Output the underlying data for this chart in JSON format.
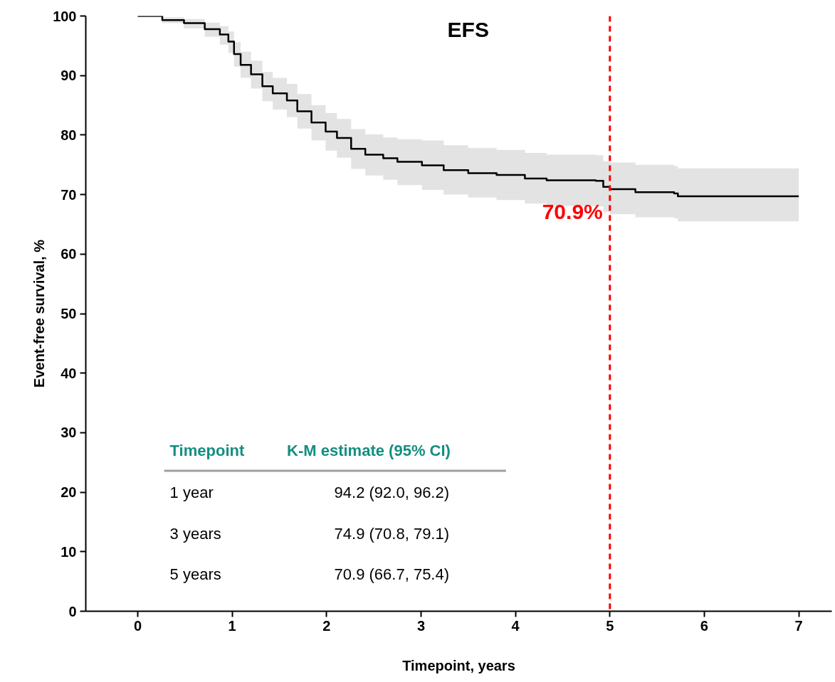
{
  "chart_data": {
    "type": "step",
    "title": "EFS",
    "xlabel": "Timepoint, years",
    "ylabel": "Event-free survival, %",
    "x": [
      0,
      0.26,
      0.49,
      0.71,
      0.87,
      0.96,
      1.02,
      1.09,
      1.2,
      1.32,
      1.43,
      1.58,
      1.69,
      1.84,
      1.99,
      2.11,
      2.26,
      2.41,
      2.6,
      2.75,
      3.01,
      3.24,
      3.5,
      3.8,
      4.1,
      4.33,
      4.85,
      4.93,
      5.0,
      5.27,
      5.68,
      5.72,
      7
    ],
    "series": [
      {
        "color": "#000000",
        "values": [
          100,
          99.3,
          98.8,
          97.8,
          96.9,
          95.7,
          93.6,
          91.8,
          90.2,
          88.2,
          87.0,
          85.8,
          84.0,
          82.1,
          80.6,
          79.5,
          77.7,
          76.7,
          76.1,
          75.5,
          74.9,
          74.1,
          73.6,
          73.3,
          72.7,
          72.4,
          72.3,
          71.3,
          70.9,
          70.4,
          70.2,
          69.7,
          69.7
        ],
        "lower": [
          100,
          98.8,
          97.9,
          96.5,
          95.2,
          93.8,
          91.5,
          89.6,
          87.8,
          85.7,
          84.3,
          83.0,
          81.1,
          79.1,
          77.4,
          76.2,
          74.3,
          73.2,
          72.5,
          71.6,
          70.8,
          70.0,
          69.5,
          69.1,
          68.5,
          68.1,
          68.0,
          67.1,
          66.7,
          66.2,
          66.0,
          65.5,
          65.5
        ],
        "upper": [
          100,
          99.8,
          99.5,
          98.9,
          98.3,
          97.4,
          95.6,
          94.0,
          92.5,
          90.6,
          89.6,
          88.6,
          86.9,
          85.0,
          83.7,
          82.7,
          81.0,
          80.1,
          79.6,
          79.3,
          79.1,
          78.3,
          77.8,
          77.5,
          77.0,
          76.7,
          76.6,
          75.6,
          75.4,
          75.0,
          74.8,
          74.4,
          74.4
        ]
      }
    ],
    "xlim": [
      -0.55,
      7.35
    ],
    "ylim": [
      0,
      100
    ],
    "xticks": [
      0,
      1,
      2,
      3,
      4,
      5,
      6,
      7
    ],
    "yticks": [
      0,
      10,
      20,
      30,
      40,
      50,
      60,
      70,
      80,
      90,
      100
    ],
    "grid": false,
    "ref_lines": [
      {
        "axis": "x",
        "value": 5,
        "color": "#ff0000",
        "line_style": "dashed"
      }
    ],
    "annotations": [
      {
        "text": "70.9%",
        "x": 5,
        "y": 70.9
      },
      "Timepoint",
      "K-M estimate (95% CI)",
      "1 year",
      "94.2 (92.0, 96.2)",
      "3 years",
      "74.9 (70.8, 79.1)",
      "5 years",
      "70.9 (66.7, 75.4)"
    ]
  }
}
